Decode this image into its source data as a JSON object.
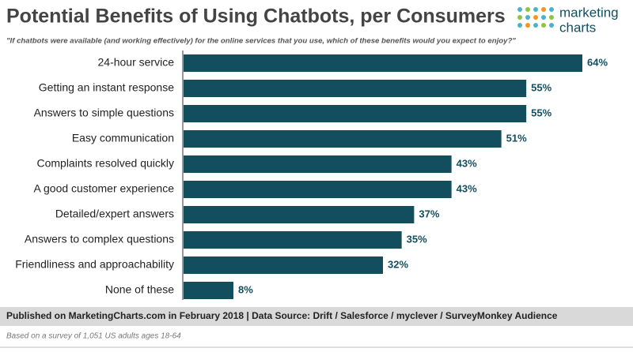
{
  "chart_data": {
    "type": "bar",
    "orientation": "horizontal",
    "title": "Potential Benefits of Using Chatbots, per Consumers",
    "subtitle": "\"If chatbots were available (and working effectively) for the online services that you use, which of these benefits would you expect to enjoy?\"",
    "categories": [
      "24-hour service",
      "Getting an instant response",
      "Answers to simple questions",
      "Easy communication",
      "Complaints resolved quickly",
      "A good customer experience",
      "Detailed/expert answers",
      "Answers to complex questions",
      "Friendliness and approachability",
      "None of these"
    ],
    "values": [
      64,
      55,
      55,
      51,
      43,
      43,
      37,
      35,
      32,
      8
    ],
    "value_labels": [
      "64%",
      "55%",
      "55%",
      "51%",
      "43%",
      "43%",
      "37%",
      "35%",
      "32%",
      "8%"
    ],
    "color": "#124e5e",
    "logo": [
      "marketing",
      "charts"
    ],
    "source": "Published on MarketingCharts.com in February 2018 | Data Source: Drift / Salesforce / myclever / SurveyMonkey Audience",
    "note": "Based on a survey of 1,051 US adults ages 18-64"
  }
}
